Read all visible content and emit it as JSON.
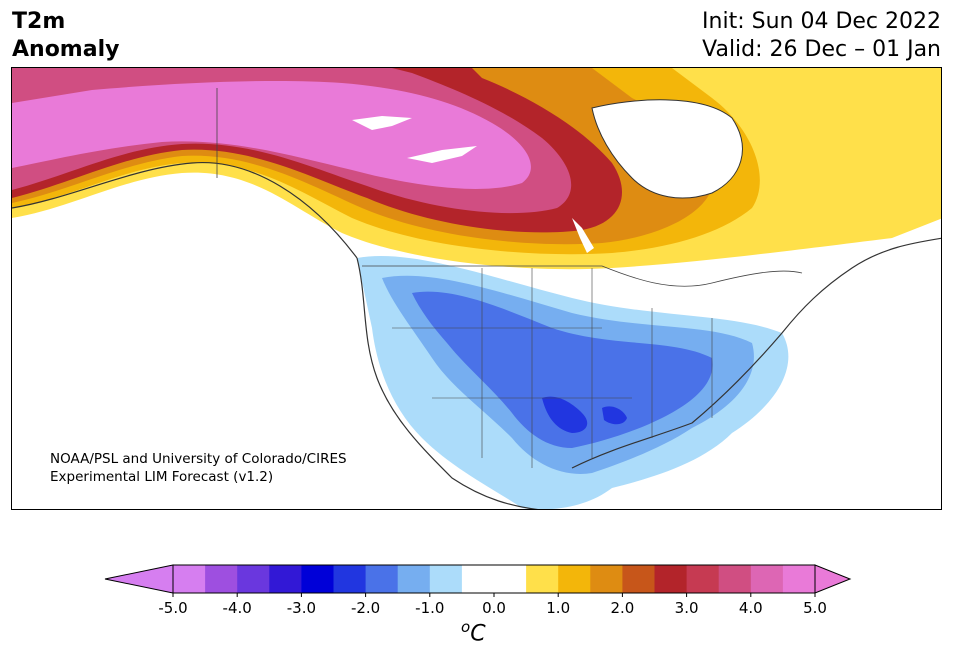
{
  "title": {
    "left_line1": "T2m",
    "left_line2": "Anomaly",
    "init": "Init: Sun 04 Dec 2022",
    "valid": "Valid: 26 Dec – 01 Jan"
  },
  "credit": {
    "line1": "NOAA/PSL and University of Colorado/CIRES",
    "line2": "Experimental LIM Forecast (v1.2)"
  },
  "colorbar": {
    "unit": "C",
    "unit_prefix": "o",
    "min": -5.0,
    "max": 5.0,
    "tick_labels": [
      "-5.0",
      "-4.0",
      "-3.0",
      "-2.0",
      "-1.0",
      "0.0",
      "1.0",
      "2.0",
      "3.0",
      "4.0",
      "5.0"
    ],
    "colors": [
      "#d67ef0",
      "#9e4fe0",
      "#6a37de",
      "#3218d6",
      "#0000d8",
      "#2136e0",
      "#4a72e8",
      "#76aef0",
      "#acdcfa",
      "#ffffff",
      "#ffffff",
      "#ffe04a",
      "#f3b60a",
      "#de8c12",
      "#c7561a",
      "#b3242a",
      "#c63a52",
      "#d04e82",
      "#dd66b4",
      "#e97ad8"
    ],
    "under_color": "#d67ef0",
    "over_color": "#e97ad8"
  },
  "map": {
    "region": "North America",
    "variable": "2-metre temperature anomaly"
  }
}
